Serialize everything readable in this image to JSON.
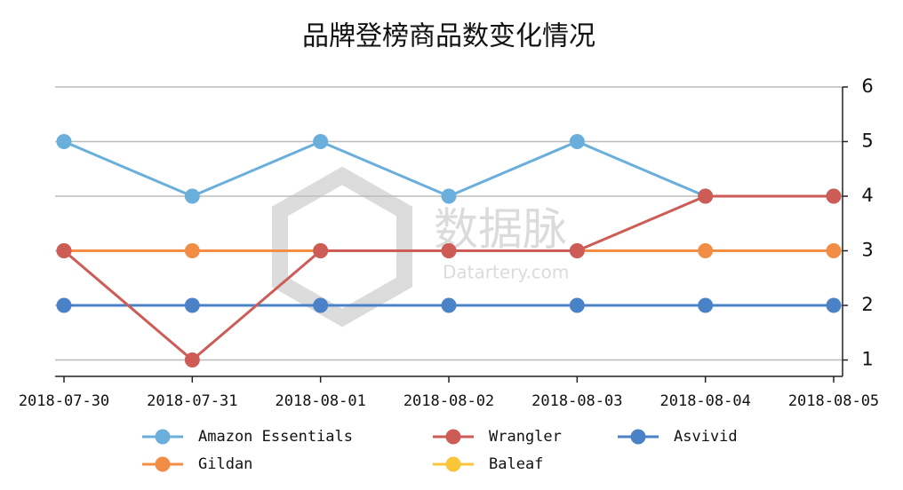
{
  "chart_data": {
    "type": "line",
    "title": "品牌登榜商品数变化情况",
    "categories": [
      "2018-07-30",
      "2018-07-31",
      "2018-08-01",
      "2018-08-02",
      "2018-08-03",
      "2018-08-04",
      "2018-08-05"
    ],
    "series": [
      {
        "name": "Amazon Essentials",
        "color": "#6aafdc",
        "values": [
          5,
          4,
          5,
          4,
          5,
          4,
          4
        ]
      },
      {
        "name": "Wrangler",
        "color": "#cd5c57",
        "values": [
          3,
          1,
          3,
          3,
          3,
          4,
          4
        ]
      },
      {
        "name": "Asvivid",
        "color": "#4a82c8",
        "values": [
          2,
          2,
          2,
          2,
          2,
          2,
          2
        ]
      },
      {
        "name": "Gildan",
        "color": "#f28d46",
        "values": [
          3,
          3,
          3,
          3,
          3,
          3,
          3
        ]
      },
      {
        "name": "Baleaf",
        "color": "#fbc53a",
        "values": [
          null,
          null,
          null,
          null,
          null,
          null,
          null
        ]
      }
    ],
    "ylim": [
      0.7,
      6
    ],
    "yticks": [
      1,
      2,
      3,
      4,
      5,
      6
    ],
    "grid": true,
    "y_axis_side": "right",
    "watermark": {
      "name": "数据脉",
      "site": "Datartery.com"
    }
  }
}
